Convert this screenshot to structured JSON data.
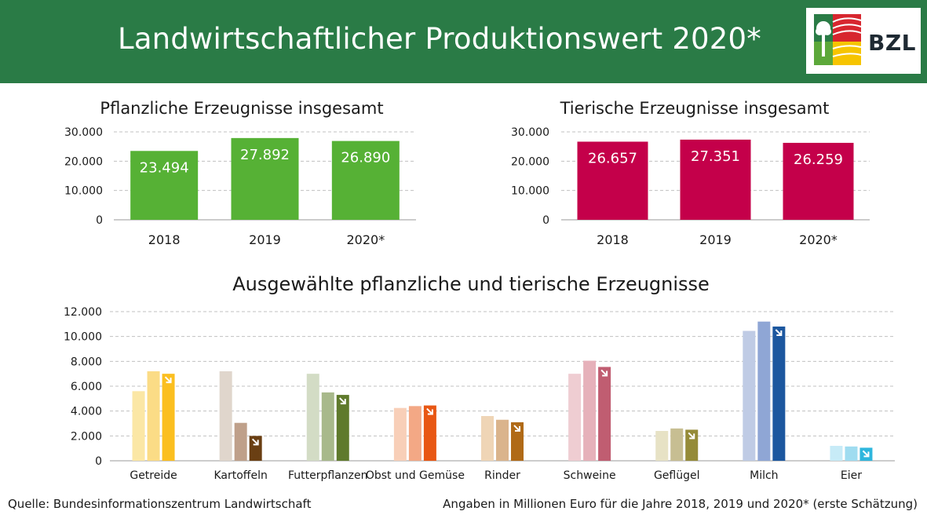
{
  "header": {
    "title": "Landwirtschaftlicher Produktionswert 2020*",
    "logo_text": "BZL",
    "background_color": "#2a7b46"
  },
  "footer": {
    "source": "Quelle: Bundesinformationszentrum Landwirtschaft",
    "note": "Angaben in Millionen Euro für die Jahre 2018, 2019 und 2020* (erste Schätzung)"
  },
  "chart_data": [
    {
      "type": "bar",
      "title": "Pflanzliche Erzeugnisse insgesamt",
      "categories": [
        "2018",
        "2019",
        "2020*"
      ],
      "values": [
        23494,
        27892,
        26890
      ],
      "value_labels": [
        "23.494",
        "27.892",
        "26.890"
      ],
      "y_ticks": [
        "0",
        "10.000",
        "20.000",
        "30.000"
      ],
      "ylim": [
        0,
        30000
      ],
      "color": "#56b135",
      "grid": true
    },
    {
      "type": "bar",
      "title": "Tierische Erzeugnisse insgesamt",
      "categories": [
        "2018",
        "2019",
        "2020*"
      ],
      "values": [
        26657,
        27351,
        26259
      ],
      "value_labels": [
        "26.657",
        "27.351",
        "26.259"
      ],
      "y_ticks": [
        "0",
        "10.000",
        "20.000",
        "30.000"
      ],
      "ylim": [
        0,
        30000
      ],
      "color": "#c4004a",
      "grid": true
    },
    {
      "type": "bar",
      "title": "Ausgewählte pflanzliche und tierische Erzeugnisse",
      "categories": [
        "Getreide",
        "Kartoffeln",
        "Futterpflanzen",
        "Obst und Gemüse",
        "Rinder",
        "Schweine",
        "Geflügel",
        "Milch",
        "Eier"
      ],
      "series": [
        {
          "values": [
            5600,
            7200,
            7000,
            4250,
            3600,
            7000,
            2400,
            10450,
            1200
          ]
        },
        {
          "values": [
            7200,
            3050,
            5500,
            4400,
            3300,
            8050,
            2600,
            11200,
            1150
          ]
        },
        {
          "values": [
            7000,
            2000,
            5300,
            4450,
            3100,
            7550,
            2500,
            10800,
            1050
          ]
        }
      ],
      "colors": [
        [
          "#fbe7a5",
          "#fbdc86",
          "#fbbf20"
        ],
        [
          "#e0d6cc",
          "#bfa08a",
          "#6a3f13"
        ],
        [
          "#d3dcc5",
          "#a8b98b",
          "#5f7a2c"
        ],
        [
          "#f8cfb8",
          "#f3a885",
          "#e85714"
        ],
        [
          "#efd5b6",
          "#dab48c",
          "#b06a17"
        ],
        [
          "#efcdd2",
          "#e6b1ba",
          "#c05d71"
        ],
        [
          "#e7e2c5",
          "#c7be92",
          "#958b38"
        ],
        [
          "#bfcbe5",
          "#8fa6d5",
          "#1c579f"
        ],
        [
          "#c7ebf7",
          "#9fdcf0",
          "#2eb6dd"
        ]
      ],
      "y_ticks": [
        "0",
        "2.000",
        "4.000",
        "6.000",
        "8.000",
        "10.000",
        "12.000"
      ],
      "ylim": [
        0,
        12000
      ],
      "grid": true,
      "trend_icon_on": "2020*"
    }
  ]
}
